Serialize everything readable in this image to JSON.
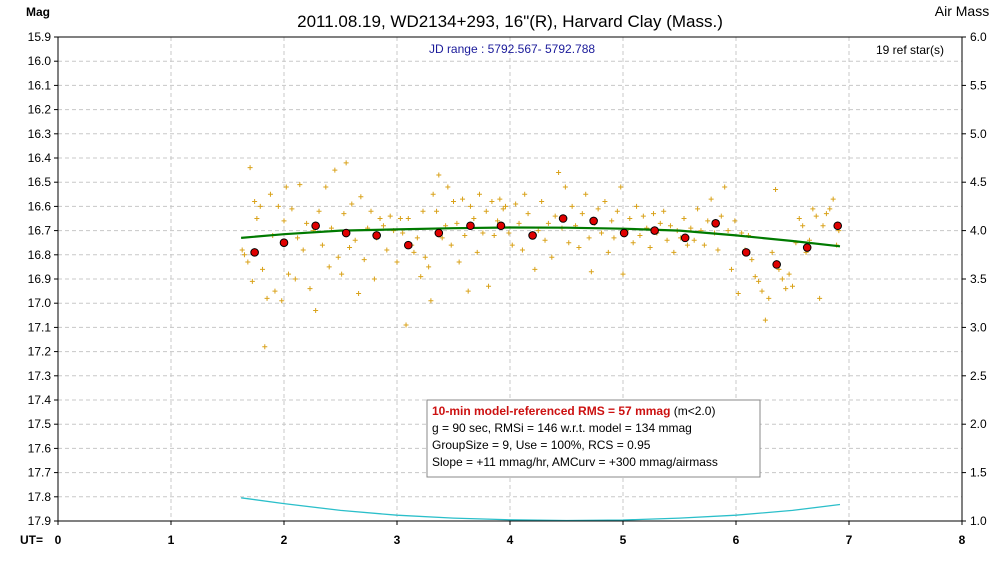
{
  "chart_data": {
    "type": "scatter",
    "title": "2011.08.19, WD2134+293, 16\"(R), Harvard Clay (Mass.)",
    "subtitle": "JD range : 5792.567- 5792.788",
    "left_axis_label": "Mag",
    "right_axis_label": "Air Mass",
    "x_axis_label": "UT=",
    "ref_stars": "19 ref star(s)",
    "xlim": [
      0,
      8
    ],
    "ylim_mag": [
      15.9,
      17.9
    ],
    "ylim_airmass": [
      1.0,
      6.0
    ],
    "grid": true,
    "x_ticks": [
      "0",
      "1",
      "2",
      "3",
      "4",
      "5",
      "6",
      "7",
      "8"
    ],
    "y_ticks": [
      "15.9",
      "16.0",
      "16.1",
      "16.2",
      "16.3",
      "16.4",
      "16.5",
      "16.6",
      "16.7",
      "16.8",
      "16.9",
      "17.0",
      "17.1",
      "17.2",
      "17.3",
      "17.4",
      "17.5",
      "17.6",
      "17.7",
      "17.8",
      "17.9"
    ],
    "y2_ticks": [
      "6.0",
      "5.5",
      "5.0",
      "4.5",
      "4.0",
      "3.5",
      "3.0",
      "2.5",
      "2.0",
      "1.5",
      "1.0"
    ],
    "stats_box": {
      "line1_bold": "10-min model-referenced RMS = 57 mmag",
      "line1_rest": " (m<2.0)",
      "line2": "g = 90 sec, RMSi = 146 w.r.t. model = 134 mmag",
      "line3": "GroupSize = 9, Use = 100%, RCS = 0.95",
      "line4": "Slope = +11 mmag/hr, AMCurv = +300 mmag/airmass"
    },
    "colors": {
      "individual": "#d9a21a",
      "group_avg": "#e00000",
      "model": "#007a00",
      "airmass": "#2bbfca",
      "subtitle": "#1a1a9a",
      "stats_highlight": "#cc1111"
    },
    "series": [
      {
        "kind": "individual",
        "points": [
          [
            1.63,
            16.78
          ],
          [
            1.65,
            16.8
          ],
          [
            1.68,
            16.83
          ],
          [
            1.7,
            16.44
          ],
          [
            1.72,
            16.91
          ],
          [
            1.74,
            16.58
          ],
          [
            1.76,
            16.65
          ],
          [
            1.79,
            16.6
          ],
          [
            1.81,
            16.86
          ],
          [
            1.83,
            17.18
          ],
          [
            1.85,
            16.98
          ],
          [
            1.88,
            16.55
          ],
          [
            1.9,
            16.72
          ],
          [
            1.92,
            16.95
          ],
          [
            1.95,
            16.6
          ],
          [
            1.98,
            16.99
          ],
          [
            2.0,
            16.66
          ],
          [
            2.02,
            16.52
          ],
          [
            2.04,
            16.88
          ],
          [
            2.07,
            16.61
          ],
          [
            2.1,
            16.9
          ],
          [
            2.12,
            16.73
          ],
          [
            2.14,
            16.51
          ],
          [
            2.17,
            16.78
          ],
          [
            2.2,
            16.67
          ],
          [
            2.23,
            16.94
          ],
          [
            2.26,
            16.7
          ],
          [
            2.28,
            17.03
          ],
          [
            2.31,
            16.62
          ],
          [
            2.34,
            16.76
          ],
          [
            2.37,
            16.52
          ],
          [
            2.4,
            16.85
          ],
          [
            2.42,
            16.69
          ],
          [
            2.45,
            16.45
          ],
          [
            2.48,
            16.81
          ],
          [
            2.51,
            16.88
          ],
          [
            2.53,
            16.63
          ],
          [
            2.55,
            16.42
          ],
          [
            2.58,
            16.77
          ],
          [
            2.6,
            16.59
          ],
          [
            2.63,
            16.74
          ],
          [
            2.66,
            16.96
          ],
          [
            2.68,
            16.56
          ],
          [
            2.71,
            16.82
          ],
          [
            2.74,
            16.69
          ],
          [
            2.77,
            16.62
          ],
          [
            2.8,
            16.9
          ],
          [
            2.82,
            16.73
          ],
          [
            2.85,
            16.65
          ],
          [
            2.88,
            16.68
          ],
          [
            2.91,
            16.78
          ],
          [
            2.94,
            16.64
          ],
          [
            2.97,
            16.7
          ],
          [
            3.0,
            16.83
          ],
          [
            3.03,
            16.65
          ],
          [
            3.05,
            16.71
          ],
          [
            3.08,
            17.09
          ],
          [
            3.1,
            16.65
          ],
          [
            3.13,
            16.76
          ],
          [
            3.15,
            16.79
          ],
          [
            3.18,
            16.73
          ],
          [
            3.21,
            16.89
          ],
          [
            3.23,
            16.62
          ],
          [
            3.25,
            16.81
          ],
          [
            3.28,
            16.85
          ],
          [
            3.3,
            16.99
          ],
          [
            3.32,
            16.55
          ],
          [
            3.35,
            16.62
          ],
          [
            3.37,
            16.47
          ],
          [
            3.4,
            16.73
          ],
          [
            3.43,
            16.68
          ],
          [
            3.45,
            16.52
          ],
          [
            3.48,
            16.76
          ],
          [
            3.5,
            16.58
          ],
          [
            3.53,
            16.67
          ],
          [
            3.55,
            16.83
          ],
          [
            3.58,
            16.57
          ],
          [
            3.6,
            16.72
          ],
          [
            3.63,
            16.95
          ],
          [
            3.65,
            16.6
          ],
          [
            3.68,
            16.65
          ],
          [
            3.71,
            16.79
          ],
          [
            3.73,
            16.55
          ],
          [
            3.76,
            16.71
          ],
          [
            3.79,
            16.62
          ],
          [
            3.81,
            16.93
          ],
          [
            3.84,
            16.58
          ],
          [
            3.86,
            16.72
          ],
          [
            3.89,
            16.66
          ],
          [
            3.91,
            16.57
          ],
          [
            3.94,
            16.61
          ],
          [
            3.96,
            16.6
          ],
          [
            3.99,
            16.71
          ],
          [
            4.02,
            16.76
          ],
          [
            4.05,
            16.59
          ],
          [
            4.08,
            16.67
          ],
          [
            4.11,
            16.78
          ],
          [
            4.13,
            16.55
          ],
          [
            4.16,
            16.63
          ],
          [
            4.19,
            16.72
          ],
          [
            4.22,
            16.86
          ],
          [
            4.25,
            16.7
          ],
          [
            4.28,
            16.58
          ],
          [
            4.31,
            16.74
          ],
          [
            4.34,
            16.67
          ],
          [
            4.37,
            16.81
          ],
          [
            4.4,
            16.64
          ],
          [
            4.43,
            16.46
          ],
          [
            4.46,
            16.69
          ],
          [
            4.49,
            16.52
          ],
          [
            4.52,
            16.75
          ],
          [
            4.55,
            16.6
          ],
          [
            4.58,
            16.68
          ],
          [
            4.61,
            16.77
          ],
          [
            4.64,
            16.63
          ],
          [
            4.67,
            16.55
          ],
          [
            4.7,
            16.73
          ],
          [
            4.72,
            16.87
          ],
          [
            4.75,
            16.67
          ],
          [
            4.78,
            16.61
          ],
          [
            4.81,
            16.71
          ],
          [
            4.84,
            16.58
          ],
          [
            4.87,
            16.79
          ],
          [
            4.9,
            16.66
          ],
          [
            4.92,
            16.73
          ],
          [
            4.95,
            16.62
          ],
          [
            4.98,
            16.52
          ],
          [
            5.0,
            16.88
          ],
          [
            5.03,
            16.7
          ],
          [
            5.06,
            16.65
          ],
          [
            5.09,
            16.75
          ],
          [
            5.12,
            16.6
          ],
          [
            5.15,
            16.72
          ],
          [
            5.18,
            16.64
          ],
          [
            5.21,
            16.69
          ],
          [
            5.24,
            16.77
          ],
          [
            5.27,
            16.63
          ],
          [
            5.3,
            16.71
          ],
          [
            5.33,
            16.67
          ],
          [
            5.36,
            16.62
          ],
          [
            5.39,
            16.74
          ],
          [
            5.42,
            16.68
          ],
          [
            5.45,
            16.79
          ],
          [
            5.48,
            16.7
          ],
          [
            5.51,
            16.73
          ],
          [
            5.54,
            16.65
          ],
          [
            5.57,
            16.76
          ],
          [
            5.6,
            16.69
          ],
          [
            5.63,
            16.74
          ],
          [
            5.66,
            16.61
          ],
          [
            5.69,
            16.7
          ],
          [
            5.72,
            16.76
          ],
          [
            5.75,
            16.66
          ],
          [
            5.78,
            16.57
          ],
          [
            5.81,
            16.71
          ],
          [
            5.84,
            16.78
          ],
          [
            5.87,
            16.64
          ],
          [
            5.9,
            16.52
          ],
          [
            5.93,
            16.7
          ],
          [
            5.96,
            16.86
          ],
          [
            5.99,
            16.66
          ],
          [
            6.02,
            16.96
          ],
          [
            6.05,
            16.71
          ],
          [
            6.08,
            16.78
          ],
          [
            6.11,
            16.72
          ],
          [
            6.14,
            16.82
          ],
          [
            6.17,
            16.89
          ],
          [
            6.2,
            16.91
          ],
          [
            6.23,
            16.95
          ],
          [
            6.26,
            17.07
          ],
          [
            6.29,
            16.98
          ],
          [
            6.32,
            16.79
          ],
          [
            6.35,
            16.53
          ],
          [
            6.38,
            16.86
          ],
          [
            6.41,
            16.9
          ],
          [
            6.44,
            16.94
          ],
          [
            6.47,
            16.88
          ],
          [
            6.5,
            16.93
          ],
          [
            6.53,
            16.75
          ],
          [
            6.56,
            16.65
          ],
          [
            6.59,
            16.68
          ],
          [
            6.62,
            16.79
          ],
          [
            6.65,
            16.74
          ],
          [
            6.68,
            16.61
          ],
          [
            6.71,
            16.64
          ],
          [
            6.74,
            16.98
          ],
          [
            6.77,
            16.68
          ],
          [
            6.8,
            16.63
          ],
          [
            6.83,
            16.61
          ],
          [
            6.86,
            16.57
          ],
          [
            6.89,
            16.76
          ],
          [
            6.91,
            16.7
          ]
        ]
      },
      {
        "kind": "group_avg",
        "points": [
          [
            1.74,
            16.79
          ],
          [
            2.0,
            16.75
          ],
          [
            2.28,
            16.68
          ],
          [
            2.55,
            16.71
          ],
          [
            2.82,
            16.72
          ],
          [
            3.1,
            16.76
          ],
          [
            3.37,
            16.71
          ],
          [
            3.65,
            16.68
          ],
          [
            3.92,
            16.68
          ],
          [
            4.2,
            16.72
          ],
          [
            4.47,
            16.65
          ],
          [
            4.74,
            16.66
          ],
          [
            5.01,
            16.71
          ],
          [
            5.28,
            16.7
          ],
          [
            5.55,
            16.73
          ],
          [
            5.82,
            16.67
          ],
          [
            6.09,
            16.79
          ],
          [
            6.36,
            16.84
          ],
          [
            6.63,
            16.77
          ],
          [
            6.9,
            16.68
          ]
        ]
      },
      {
        "kind": "model",
        "points": [
          [
            1.62,
            16.73
          ],
          [
            2.0,
            16.715
          ],
          [
            2.5,
            16.7
          ],
          [
            3.0,
            16.695
          ],
          [
            3.5,
            16.69
          ],
          [
            4.0,
            16.687
          ],
          [
            4.5,
            16.688
          ],
          [
            5.0,
            16.692
          ],
          [
            5.5,
            16.7
          ],
          [
            6.0,
            16.72
          ],
          [
            6.5,
            16.743
          ],
          [
            6.92,
            16.765
          ]
        ]
      },
      {
        "kind": "airmass",
        "points": [
          [
            1.62,
            1.24
          ],
          [
            2.0,
            1.18
          ],
          [
            2.5,
            1.11
          ],
          [
            3.0,
            1.06
          ],
          [
            3.5,
            1.03
          ],
          [
            4.0,
            1.012
          ],
          [
            4.5,
            1.005
          ],
          [
            5.0,
            1.01
          ],
          [
            5.5,
            1.03
          ],
          [
            6.0,
            1.06
          ],
          [
            6.5,
            1.11
          ],
          [
            6.92,
            1.17
          ]
        ]
      }
    ]
  }
}
